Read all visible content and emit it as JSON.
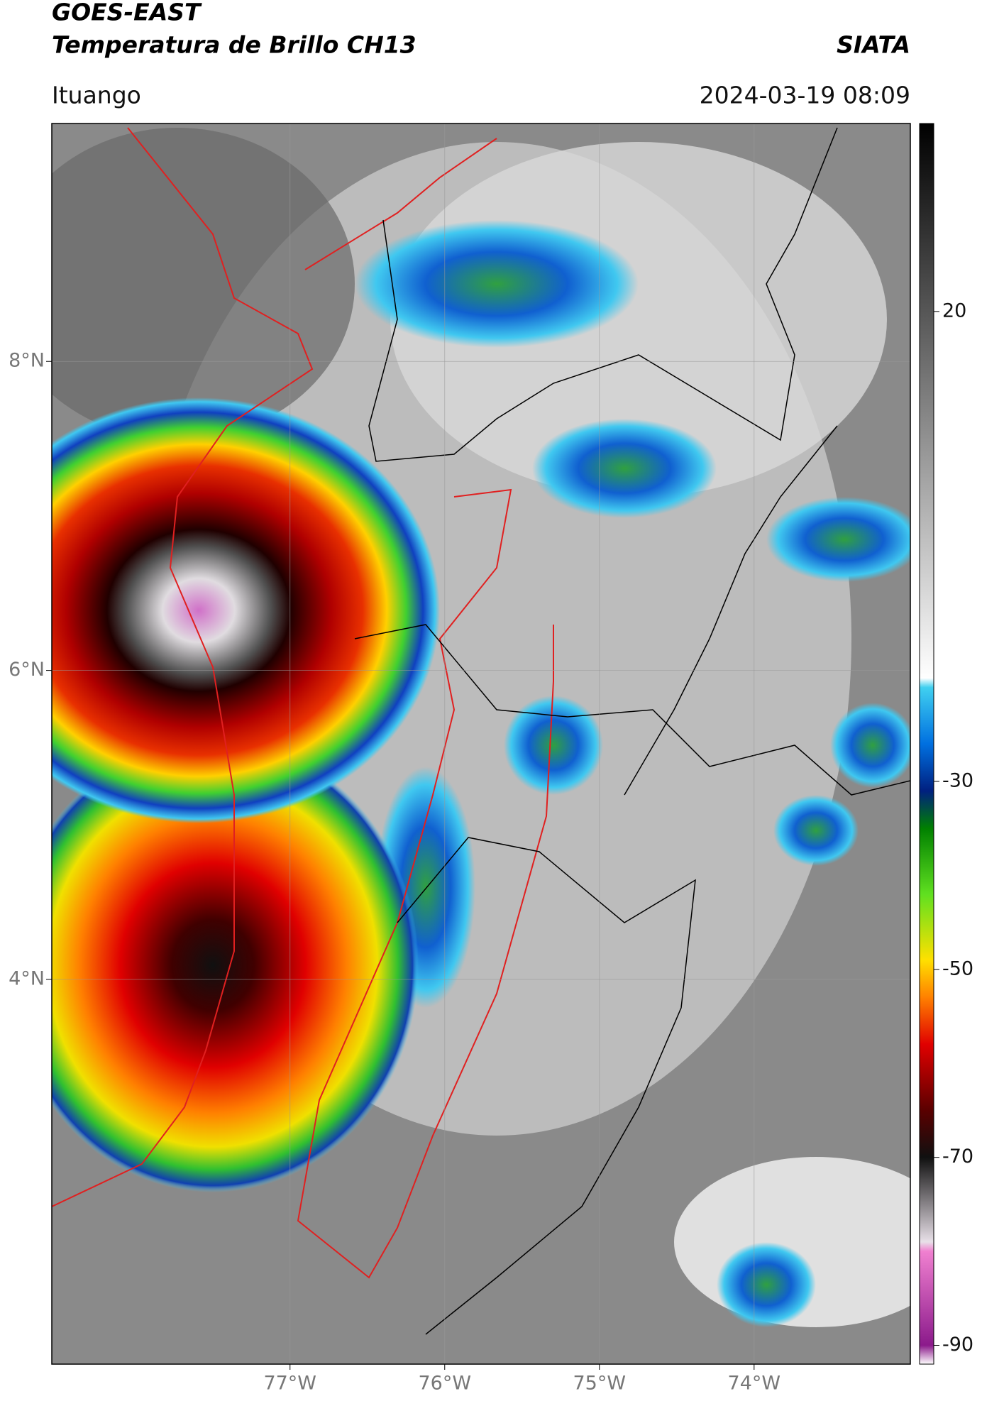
{
  "header": {
    "title": "GOES-EAST",
    "subtitle": "Temperatura de Brillo CH13",
    "source": "SIATA",
    "location": "Ituango",
    "datetime": "2024-03-19 08:09"
  },
  "map": {
    "type": "map",
    "lonlim": [
      -78.54,
      -72.99
    ],
    "latlim": [
      1.51,
      9.54
    ],
    "grid": true,
    "lonticks": [
      {
        "value": -77,
        "label": "77°W"
      },
      {
        "value": -76,
        "label": "76°W"
      },
      {
        "value": -75,
        "label": "75°W"
      },
      {
        "value": -74,
        "label": "74°W"
      }
    ],
    "latticks": [
      {
        "value": 8,
        "label": "8°N"
      },
      {
        "value": 6,
        "label": "6°N"
      },
      {
        "value": 4,
        "label": "4°N"
      }
    ]
  },
  "colorbar": {
    "clim": [
      -92,
      40
    ],
    "ticks": [
      20,
      -30,
      -50,
      -70,
      -90
    ],
    "colormap": [
      {
        "value": -92,
        "color": "#ffffff"
      },
      {
        "value": -90,
        "color": "#8b1a8b"
      },
      {
        "value": -80,
        "color": "#f080d0"
      },
      {
        "value": -79,
        "color": "#e8e0e8"
      },
      {
        "value": -70,
        "color": "#101010"
      },
      {
        "value": -65,
        "color": "#5a0000"
      },
      {
        "value": -58,
        "color": "#e00000"
      },
      {
        "value": -53,
        "color": "#ff8000"
      },
      {
        "value": -49,
        "color": "#ffe000"
      },
      {
        "value": -42,
        "color": "#60e020"
      },
      {
        "value": -35,
        "color": "#008000"
      },
      {
        "value": -31,
        "color": "#002080"
      },
      {
        "value": -26,
        "color": "#0070e0"
      },
      {
        "value": -20,
        "color": "#40d0f0"
      },
      {
        "value": -19,
        "color": "#ffffff"
      },
      {
        "value": 40,
        "color": "#000000"
      }
    ]
  }
}
